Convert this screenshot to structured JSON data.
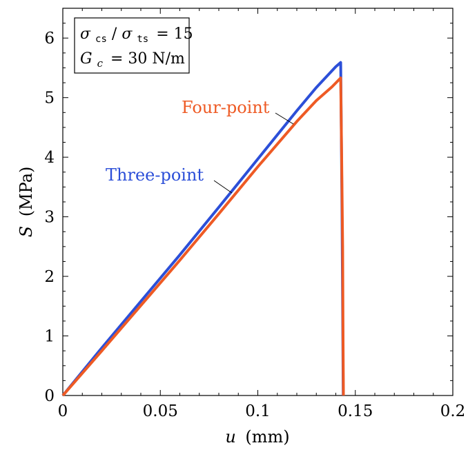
{
  "chart_data": {
    "type": "line",
    "xlabel_var": "u",
    "xlabel_unit": "(mm)",
    "ylabel_var": "S",
    "ylabel_unit": "(MPa)",
    "xlim": [
      0,
      0.2
    ],
    "ylim": [
      0,
      6.5
    ],
    "x_ticks": [
      0,
      0.05,
      0.1,
      0.15,
      0.2
    ],
    "x_tick_labels": [
      "0",
      "0.05",
      "0.1",
      "0.15",
      "0.2"
    ],
    "y_ticks": [
      0,
      1,
      2,
      3,
      4,
      5,
      6
    ],
    "y_tick_labels": [
      "0",
      "1",
      "2",
      "3",
      "4",
      "5",
      "6"
    ],
    "legend_box": {
      "line1": {
        "sigma1": "σ",
        "sub1": "cs",
        "slash": "/",
        "sigma2": "σ",
        "sub2": "ts",
        "eq": "= 15"
      },
      "line2": {
        "var": "G",
        "sub": "c",
        "eq": "= 30 N/m"
      }
    },
    "series": [
      {
        "name": "Three-point",
        "color": "#2c4fd8",
        "x": [
          0,
          0.02,
          0.04,
          0.06,
          0.08,
          0.1,
          0.12,
          0.13,
          0.14,
          0.1425,
          0.1428,
          0.1432,
          0.1435,
          0.1438
        ],
        "y": [
          0,
          0.8,
          1.58,
          2.36,
          3.16,
          3.97,
          4.78,
          5.17,
          5.52,
          5.59,
          4.5,
          3.0,
          1.5,
          0
        ]
      },
      {
        "name": "Four-point",
        "color": "#ee5a24",
        "x": [
          0,
          0.02,
          0.04,
          0.06,
          0.08,
          0.1,
          0.12,
          0.13,
          0.138,
          0.1425,
          0.143,
          0.1435,
          0.1437,
          0.1439
        ],
        "y": [
          0,
          0.75,
          1.51,
          2.27,
          3.05,
          3.84,
          4.6,
          4.95,
          5.18,
          5.33,
          4.0,
          2.5,
          1.0,
          0
        ]
      }
    ],
    "annotations": [
      {
        "text": "Three-point",
        "series": 0,
        "color": "#2c4fd8"
      },
      {
        "text": "Four-point",
        "series": 1,
        "color": "#ee5a24"
      }
    ]
  }
}
